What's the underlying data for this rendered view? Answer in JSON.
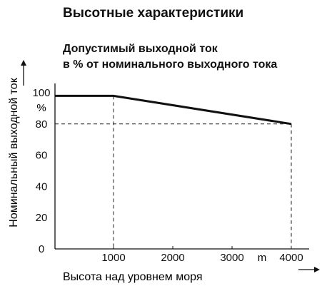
{
  "page": {
    "heading": "Высотные характеристики"
  },
  "chart_data": {
    "type": "line",
    "title": "Допустимый выходной ток",
    "subtitle": "в % от номинального выходного тока",
    "xlabel": "Высота над уровнем моря",
    "ylabel": "Номинальный выходной ток",
    "y_unit": "%",
    "x_unit": "m",
    "xlim": [
      0,
      4200
    ],
    "ylim": [
      0,
      100
    ],
    "x_ticks": [
      1000,
      2000,
      3000,
      4000
    ],
    "y_ticks": [
      0,
      20,
      40,
      60,
      80,
      100
    ],
    "grid": false,
    "series": [
      {
        "points": [
          {
            "x": 0,
            "y": 98
          },
          {
            "x": 1000,
            "y": 98
          },
          {
            "x": 4000,
            "y": 80
          }
        ]
      }
    ],
    "reference_lines": [
      {
        "x": 1000,
        "y": 98
      },
      {
        "x": 4000,
        "y": 80
      }
    ],
    "colors": {
      "line": "#111111",
      "axis": "#111111",
      "dashed": "#222222"
    }
  }
}
